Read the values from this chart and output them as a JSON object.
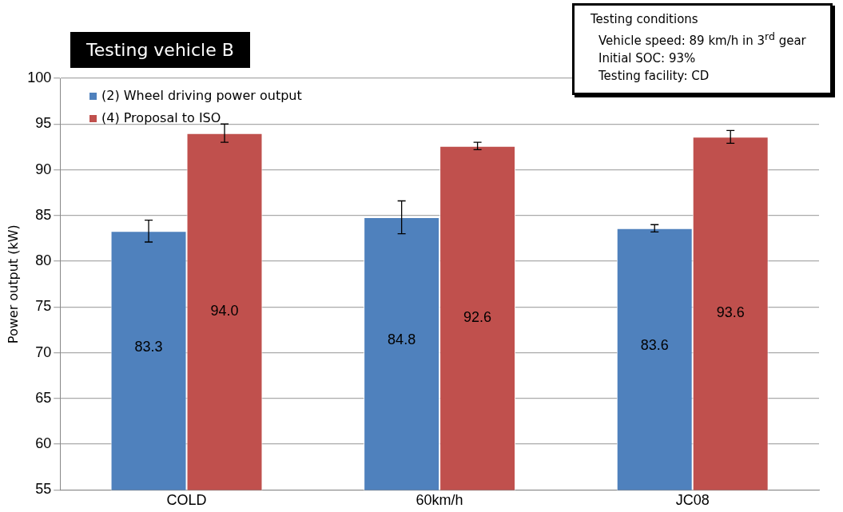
{
  "chart_data": {
    "type": "bar",
    "title": "Testing vehicle B",
    "ylabel": "Power output (kW)",
    "annotations": [
      "Testing conditions",
      "Vehicle speed: 89 km/h in 3$^{rd}$ gear",
      "Initial SOC: 93%",
      "Testing facility: CD"
    ],
    "categories": [
      "COLD",
      "60km/h",
      "JC08"
    ],
    "series": [
      {
        "name": "(2) Wheel driving power output",
        "color": "#4f81bd",
        "values": [
          83.3,
          84.8,
          83.6
        ],
        "value_labels": [
          "83.3",
          "84.8",
          "83.6"
        ],
        "errors": [
          1.2,
          1.8,
          0.4
        ]
      },
      {
        "name": "(4) Proposal to ISO",
        "color": "#c0504d",
        "values": [
          94.0,
          92.6,
          93.6
        ],
        "value_labels": [
          "94.0",
          "92.6",
          "93.6"
        ],
        "errors": [
          1.0,
          0.4,
          0.7
        ]
      }
    ],
    "ylim": [
      55,
      100
    ],
    "yticks": [
      55,
      60,
      65,
      70,
      75,
      80,
      85,
      90,
      95,
      100
    ],
    "grid": "y",
    "legend": "top left"
  }
}
